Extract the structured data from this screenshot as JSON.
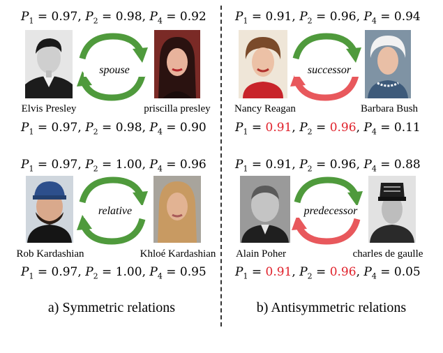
{
  "panels": [
    {
      "top_probs": {
        "p1": "0.97",
        "p2": "0.98",
        "p4": "0.92"
      },
      "bottom_probs": {
        "p1": "0.97",
        "p2": "0.98",
        "p4": "0.90"
      },
      "relation": "spouse",
      "left_name": "Elvis Presley",
      "right_name": "priscilla presley",
      "bottom_arrow_color": "#4f9a3c"
    },
    {
      "top_probs": {
        "p1": "0.91",
        "p2": "0.96",
        "p4": "0.94"
      },
      "bottom_probs": {
        "p1": "0.91",
        "p2": "0.96",
        "p4": "0.11"
      },
      "relation": "successor",
      "left_name": "Nancy Reagan",
      "right_name": "Barbara Bush",
      "bottom_arrow_color": "#e8585c"
    },
    {
      "top_probs": {
        "p1": "0.97",
        "p2": "1.00",
        "p4": "0.96"
      },
      "bottom_probs": {
        "p1": "0.97",
        "p2": "1.00",
        "p4": "0.95"
      },
      "relation": "relative",
      "left_name": "Rob Kardashian",
      "right_name": "Khloé Kardashian",
      "bottom_arrow_color": "#4f9a3c"
    },
    {
      "top_probs": {
        "p1": "0.91",
        "p2": "0.96",
        "p4": "0.88"
      },
      "bottom_probs": {
        "p1": "0.91",
        "p2": "0.96",
        "p4": "0.05"
      },
      "relation": "predecessor",
      "left_name": "Alain Poher",
      "right_name": "charles de gaulle",
      "bottom_arrow_color": "#e8585c"
    }
  ],
  "captions": {
    "left": "a) Symmetric relations",
    "right": "b) Antisymmetric relations"
  },
  "colors": {
    "green_arrow": "#4f9a3c",
    "red_arrow": "#e8585c",
    "highlight": "#e0202a"
  }
}
